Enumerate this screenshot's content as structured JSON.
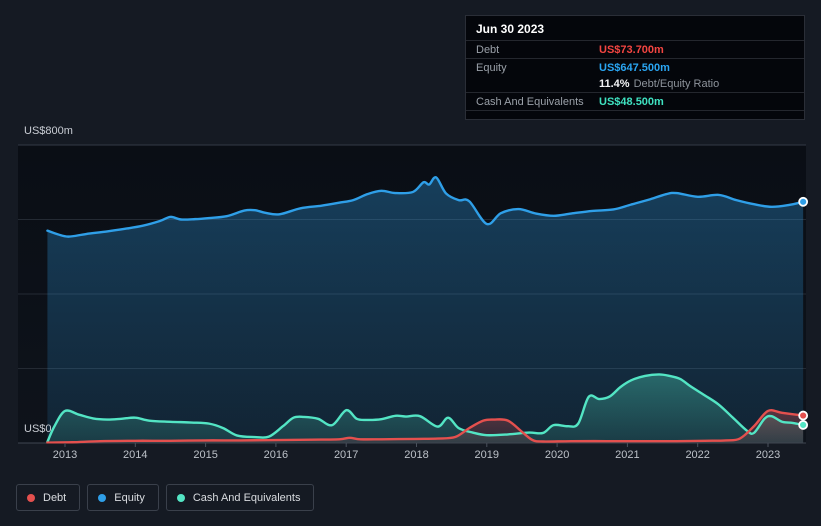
{
  "tooltip": {
    "date": "Jun 30 2023",
    "debt": {
      "label": "Debt",
      "value": "US$73.700m"
    },
    "equity": {
      "label": "Equity",
      "value": "US$647.500m"
    },
    "ratio": {
      "value": "11.4%",
      "label": "Debt/Equity Ratio"
    },
    "cash": {
      "label": "Cash And Equivalents",
      "value": "US$48.500m"
    }
  },
  "legend": {
    "items": [
      {
        "label": "Debt",
        "color_key": "debt"
      },
      {
        "label": "Equity",
        "color_key": "equity"
      },
      {
        "label": "Cash And Equivalents",
        "color_key": "cash"
      }
    ]
  },
  "colors": {
    "debt": "#e4504e",
    "equity": "#2f9fe8",
    "cash": "#53e5c4",
    "debt_value": "#f34541",
    "equity_value": "#2aa5f2",
    "cash_value": "#3fe2c1",
    "page_bg": "#151a23",
    "plot_bg_top": "#0a0e15",
    "plot_bg_bottom": "#0e131b",
    "grid_top": "#343b46",
    "grid": "#242a33",
    "axis_line": "#3f4550",
    "tick": "#4a515c"
  },
  "chart_data": {
    "type": "area",
    "unit": "US$m",
    "ylim": [
      0,
      800
    ],
    "xlim": [
      2012.72,
      2023.55
    ],
    "x_ticks": [
      2013,
      2014,
      2015,
      2016,
      2017,
      2018,
      2019,
      2020,
      2021,
      2022,
      2023
    ],
    "y_gridline_values": [
      800,
      600,
      400,
      200
    ],
    "y_axis_labels": {
      "top": "US$800m",
      "zero": "US$0"
    },
    "legend_position": "bottom-left",
    "series": [
      {
        "name": "Equity",
        "color_key": "equity",
        "points": [
          [
            2012.75,
            570
          ],
          [
            2012.9,
            560
          ],
          [
            2013.05,
            554
          ],
          [
            2013.3,
            561
          ],
          [
            2013.6,
            568
          ],
          [
            2013.85,
            575
          ],
          [
            2014.1,
            583
          ],
          [
            2014.35,
            596
          ],
          [
            2014.5,
            607
          ],
          [
            2014.65,
            600
          ],
          [
            2014.85,
            601
          ],
          [
            2015.05,
            604
          ],
          [
            2015.3,
            609
          ],
          [
            2015.55,
            624
          ],
          [
            2015.7,
            625
          ],
          [
            2015.85,
            618
          ],
          [
            2016.05,
            614
          ],
          [
            2016.35,
            630
          ],
          [
            2016.65,
            637
          ],
          [
            2016.9,
            645
          ],
          [
            2017.1,
            652
          ],
          [
            2017.3,
            668
          ],
          [
            2017.5,
            677
          ],
          [
            2017.7,
            671
          ],
          [
            2017.95,
            674
          ],
          [
            2018.1,
            700
          ],
          [
            2018.18,
            694
          ],
          [
            2018.28,
            713
          ],
          [
            2018.42,
            670
          ],
          [
            2018.6,
            652
          ],
          [
            2018.75,
            649
          ],
          [
            2019.0,
            588
          ],
          [
            2019.2,
            617
          ],
          [
            2019.45,
            628
          ],
          [
            2019.7,
            616
          ],
          [
            2019.95,
            610
          ],
          [
            2020.2,
            616
          ],
          [
            2020.5,
            623
          ],
          [
            2020.8,
            627
          ],
          [
            2021.05,
            640
          ],
          [
            2021.3,
            653
          ],
          [
            2021.55,
            668
          ],
          [
            2021.7,
            671
          ],
          [
            2022.0,
            661
          ],
          [
            2022.3,
            666
          ],
          [
            2022.55,
            652
          ],
          [
            2022.8,
            641
          ],
          [
            2023.05,
            634
          ],
          [
            2023.3,
            639
          ],
          [
            2023.5,
            647.5
          ]
        ]
      },
      {
        "name": "Cash And Equivalents",
        "color_key": "cash",
        "points": [
          [
            2012.75,
            3
          ],
          [
            2012.85,
            45
          ],
          [
            2013.0,
            86
          ],
          [
            2013.2,
            76
          ],
          [
            2013.4,
            66
          ],
          [
            2013.6,
            63
          ],
          [
            2013.8,
            65
          ],
          [
            2014.0,
            68
          ],
          [
            2014.2,
            60
          ],
          [
            2014.5,
            57
          ],
          [
            2014.8,
            55
          ],
          [
            2015.05,
            52
          ],
          [
            2015.25,
            40
          ],
          [
            2015.45,
            20
          ],
          [
            2015.7,
            16
          ],
          [
            2015.9,
            17
          ],
          [
            2016.1,
            45
          ],
          [
            2016.25,
            68
          ],
          [
            2016.4,
            70
          ],
          [
            2016.6,
            65
          ],
          [
            2016.8,
            48
          ],
          [
            2017.0,
            88
          ],
          [
            2017.15,
            65
          ],
          [
            2017.3,
            62
          ],
          [
            2017.5,
            64
          ],
          [
            2017.7,
            73
          ],
          [
            2017.85,
            71
          ],
          [
            2018.05,
            72
          ],
          [
            2018.3,
            44
          ],
          [
            2018.45,
            68
          ],
          [
            2018.6,
            40
          ],
          [
            2018.8,
            28
          ],
          [
            2019.0,
            21
          ],
          [
            2019.3,
            23
          ],
          [
            2019.6,
            28
          ],
          [
            2019.8,
            27
          ],
          [
            2019.95,
            48
          ],
          [
            2020.15,
            45
          ],
          [
            2020.3,
            52
          ],
          [
            2020.45,
            124
          ],
          [
            2020.6,
            118
          ],
          [
            2020.75,
            125
          ],
          [
            2020.9,
            150
          ],
          [
            2021.05,
            168
          ],
          [
            2021.25,
            180
          ],
          [
            2021.45,
            184
          ],
          [
            2021.6,
            180
          ],
          [
            2021.75,
            172
          ],
          [
            2021.9,
            152
          ],
          [
            2022.1,
            128
          ],
          [
            2022.3,
            103
          ],
          [
            2022.5,
            68
          ],
          [
            2022.7,
            33
          ],
          [
            2022.8,
            27
          ],
          [
            2022.95,
            65
          ],
          [
            2023.05,
            72
          ],
          [
            2023.2,
            57
          ],
          [
            2023.35,
            54
          ],
          [
            2023.5,
            48.5
          ]
        ]
      },
      {
        "name": "Debt",
        "color_key": "debt",
        "points": [
          [
            2012.75,
            1
          ],
          [
            2013.1,
            2
          ],
          [
            2013.5,
            5
          ],
          [
            2014.0,
            6
          ],
          [
            2014.5,
            6
          ],
          [
            2015.0,
            7
          ],
          [
            2015.5,
            7
          ],
          [
            2016.0,
            8
          ],
          [
            2016.5,
            9
          ],
          [
            2016.9,
            10
          ],
          [
            2017.05,
            14
          ],
          [
            2017.2,
            10
          ],
          [
            2017.5,
            10
          ],
          [
            2018.0,
            11
          ],
          [
            2018.3,
            12
          ],
          [
            2018.55,
            16
          ],
          [
            2018.75,
            40
          ],
          [
            2018.95,
            60
          ],
          [
            2019.1,
            63
          ],
          [
            2019.3,
            60
          ],
          [
            2019.5,
            30
          ],
          [
            2019.65,
            8
          ],
          [
            2019.8,
            4
          ],
          [
            2020.2,
            5
          ],
          [
            2020.7,
            5
          ],
          [
            2021.2,
            5
          ],
          [
            2021.7,
            5
          ],
          [
            2022.1,
            6
          ],
          [
            2022.4,
            7
          ],
          [
            2022.6,
            12
          ],
          [
            2022.8,
            45
          ],
          [
            2023.0,
            86
          ],
          [
            2023.2,
            81
          ],
          [
            2023.5,
            73.7
          ]
        ]
      }
    ]
  }
}
